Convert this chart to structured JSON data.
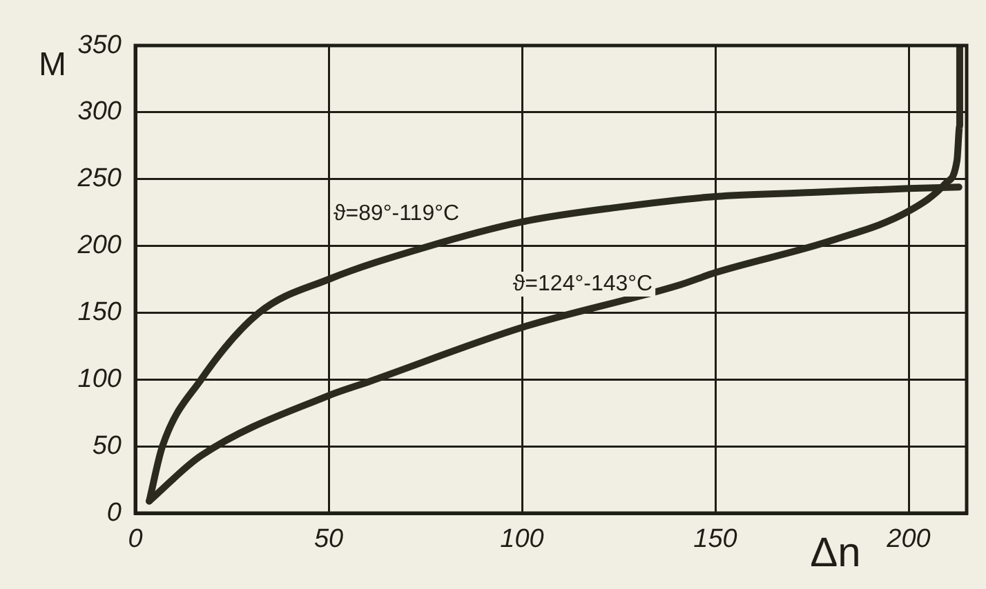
{
  "chart_data": {
    "type": "line",
    "xlabel": "Δn",
    "ylabel": "M",
    "xlim": [
      0,
      215
    ],
    "ylim": [
      0,
      350
    ],
    "xticks": [
      0,
      50,
      100,
      150,
      200
    ],
    "yticks": [
      0,
      50,
      100,
      150,
      200,
      250,
      300,
      350
    ],
    "grid": true,
    "legend": false,
    "marker": "none",
    "line_style": "solid",
    "series": [
      {
        "color": "#2a2a1e",
        "x": [
          3.6,
          7,
          17,
          32,
          50,
          75,
          100,
          125,
          150,
          175,
          200,
          213
        ],
        "values": [
          9,
          50,
          100,
          150,
          175,
          199,
          218,
          229,
          237,
          240,
          243,
          244
        ]
      },
      {
        "color": "#2a2a1e",
        "x": [
          3.6,
          17,
          50,
          60,
          100,
          141,
          150,
          180,
          200,
          209.6,
          212.5,
          213.2,
          213.2
        ],
        "values": [
          9,
          43,
          88,
          98,
          139,
          171,
          180,
          204,
          226,
          247,
          264,
          290,
          350
        ]
      }
    ],
    "annotations": [
      "ϑ=89°-119°C",
      "ϑ=124°-143°C"
    ]
  }
}
